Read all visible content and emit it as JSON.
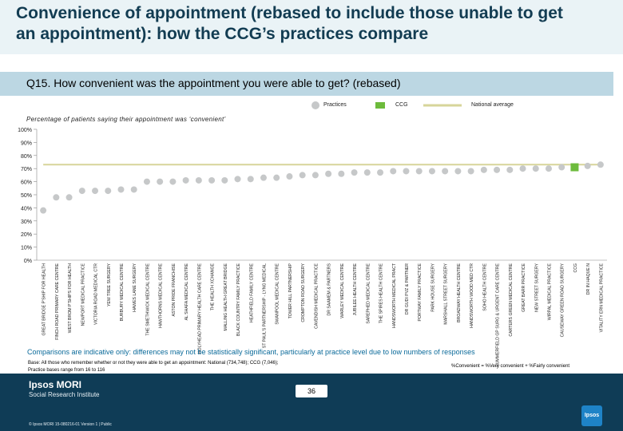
{
  "title": "Convenience of appointment (rebased to include those unable to get an appointment): how the CCG’s practices compare",
  "question": "Q15. How convenient was the appointment you were able to get? (rebased)",
  "legend": {
    "practices": "Practices",
    "ccg": "CCG",
    "national": "National average"
  },
  "chart_data": {
    "type": "bar",
    "title": "",
    "ylabel": "Percentage of patients saying their appointment was ‘convenient’",
    "xlabel": "",
    "ylim": [
      0,
      100
    ],
    "yticks": [
      "0%",
      "10%",
      "20%",
      "30%",
      "40%",
      "50%",
      "60%",
      "70%",
      "80%",
      "90%",
      "100%"
    ],
    "categories": [
      "GREAT BRIDGE P'SHIP FOR HEALTH",
      "FINCH ROAD PRIMARY CARE CENTRE",
      "WEST BROM P'SHIPS FOR HEALTH",
      "NEWPORT MEDICAL PRACTICE",
      "VICTORIA ROAD MEDICAL CTR",
      "YEW TREE SURGERY",
      "BURBURY MEDICAL CENTRE",
      "HAWES LANE SURGERY",
      "THE SMETHWICK MEDICAL CENTRE",
      "HAWTHORNS MEDICAL CENTRE",
      "ASTON PRIDE FRANCHISE",
      "AL SHAFA MEDICAL CENTRE",
      "HOLYHEAD PRIMARY HEALTH CARE CENTRE",
      "THE HEALTH XCHANGE",
      "MALLING HEALTH GREAT BRIDGE",
      "BLACK COUNTRY FAMILY PRACTICE",
      "HEATHFIELD FAMILY CENTRE",
      "ST PAUL'S PARTNERSHIP - LYNG MEDICAL",
      "SWANPOOL MEDICAL CENTRE",
      "TOWER HILL PARTNERSHIP",
      "CROMPTON ROAD SURGERY",
      "CAVENDISH MEDICAL PRACTICE",
      "DR SAAMEM & PARTNERS",
      "WARLEY MEDICAL CENTRE",
      "JUBILEE HEALTH CENTRE",
      "SAREPHED MEDICAL CENTRE",
      "THE SPIRES HEALTH CENTRE",
      "HANDSWORTH MEDICAL PRACT",
      "DR GUDI PVZ & PARTNER",
      "PORTWAY FAMILY PRACTICE",
      "PARK HOUSE SURGERY",
      "MARSHALL STREET SURGERY",
      "BROADWAY HEALTH CENTRE",
      "HANDSWORTH WOOD MED CTR",
      "SOHO HEALTH CENTRE",
      "SUMMERFIELD GP SURG & URGENT CARE CENTRE",
      "CARTERS GREEN MEDICAL CENTRE",
      "GREAT BARR PRACTICE",
      "NEW STREET SURGERY",
      "WIRPAL MEDICAL PRACTICE",
      "CAUSEWAY GREEN ROAD SURGERY",
      "CCG",
      "DR IN HAQUE N",
      "VITALITY ERN MEDICAL PRACTICE"
    ],
    "series": [
      {
        "name": "Practices",
        "values": [
          38,
          48,
          48,
          53,
          53,
          53,
          54,
          54,
          60,
          60,
          60,
          61,
          61,
          61,
          61,
          62,
          62,
          63,
          63,
          64,
          65,
          65,
          66,
          66,
          67,
          67,
          67,
          68,
          68,
          68,
          68,
          68,
          68,
          68,
          69,
          69,
          69,
          70,
          70,
          70,
          71,
          71,
          72,
          73
        ]
      },
      {
        "name": "National average",
        "values": [
          73,
          73,
          73,
          73,
          73,
          73,
          73,
          73,
          73,
          73,
          73,
          73,
          73,
          73,
          73,
          73,
          73,
          73,
          73,
          73,
          73,
          73,
          73,
          73,
          73,
          73,
          73,
          73,
          73,
          73,
          73,
          73,
          73,
          73,
          73,
          73,
          73,
          73,
          73,
          73,
          73,
          73,
          73,
          73
        ]
      }
    ],
    "highlight_category": "CCG",
    "colors": {
      "practice": "#c6c8c9",
      "ccg": "#6dbb3c",
      "national": "#d7d59a",
      "axis": "#888888"
    }
  },
  "footnote": "Comparisons are indicative only: differences may not be statistically significant, particularly at practice level due to low numbers of responses",
  "base_line1": "Base: All those who remember whether or not they were able to get an appointment: National (734,748); CCG (7,046);",
  "base_line2": "Practice bases range from 16 to 116",
  "definition": "%Convenient = %Very convenient + %Fairly convenient",
  "footer": {
    "logo": "Ipsos MORI",
    "institute": "Social Research Institute",
    "meta": "© Ipsos MORI      15-080216-01 Version 1 | Public",
    "page": "36",
    "badge": "Ipsos"
  }
}
